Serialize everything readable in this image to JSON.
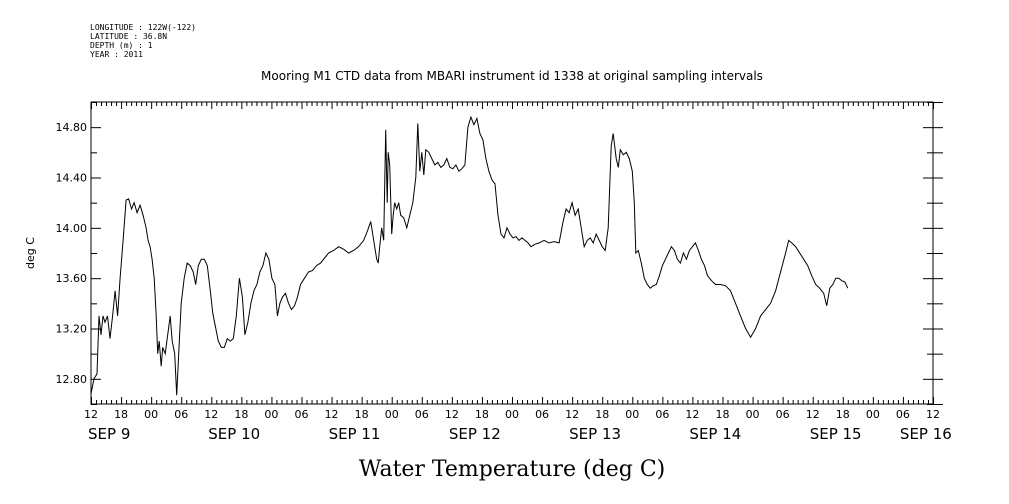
{
  "meta": {
    "lines": [
      "LONGITUDE : 122W(-122)",
      "LATITUDE : 36.8N",
      "DEPTH (m) : 1",
      "YEAR : 2011"
    ]
  },
  "chart_data": {
    "type": "line",
    "title": "Mooring M1 CTD data from MBARI instrument id 1338 at original sampling intervals",
    "xlabel": "Water Temperature (deg C)",
    "ylabel": "deg C",
    "x_unit": "hours from SEP 9 12:00",
    "xlim": [
      0,
      168
    ],
    "ylim": [
      12.6,
      15.0
    ],
    "yticks": [
      "12.80",
      "13.20",
      "13.60",
      "14.00",
      "14.40",
      "14.80"
    ],
    "ytick_values": [
      12.8,
      13.2,
      13.6,
      14.0,
      14.4,
      14.8
    ],
    "xtick_labels": [
      "12",
      "18",
      "00",
      "06",
      "12",
      "18",
      "00",
      "06",
      "12",
      "18",
      "00",
      "06",
      "12",
      "18",
      "00",
      "06",
      "12",
      "18",
      "00",
      "06",
      "12",
      "18",
      "00",
      "06",
      "12",
      "18",
      "00",
      "06",
      "12"
    ],
    "day_labels": [
      {
        "label": "SEP  9",
        "x": 0
      },
      {
        "label": "SEP 10",
        "x": 24
      },
      {
        "label": "SEP 11",
        "x": 48
      },
      {
        "label": "SEP 12",
        "x": 72
      },
      {
        "label": "SEP 13",
        "x": 96
      },
      {
        "label": "SEP 14",
        "x": 120
      },
      {
        "label": "SEP 15",
        "x": 144
      },
      {
        "label": "SEP 16",
        "x": 162
      }
    ],
    "grid": false,
    "series": [
      {
        "values": [
          [
            0,
            12.68
          ],
          [
            0.6,
            12.8
          ],
          [
            1.2,
            12.84
          ],
          [
            1.6,
            13.3
          ],
          [
            2.0,
            13.15
          ],
          [
            2.4,
            13.3
          ],
          [
            2.8,
            13.25
          ],
          [
            3.3,
            13.3
          ],
          [
            3.8,
            13.12
          ],
          [
            4.3,
            13.3
          ],
          [
            4.8,
            13.5
          ],
          [
            5.3,
            13.3
          ],
          [
            5.8,
            13.6
          ],
          [
            6.4,
            13.9
          ],
          [
            7.0,
            14.22
          ],
          [
            7.5,
            14.23
          ],
          [
            8.1,
            14.15
          ],
          [
            8.6,
            14.2
          ],
          [
            9.2,
            14.12
          ],
          [
            9.8,
            14.18
          ],
          [
            10.4,
            14.1
          ],
          [
            11,
            14.0
          ],
          [
            11.4,
            13.9
          ],
          [
            11.8,
            13.85
          ],
          [
            12.2,
            13.75
          ],
          [
            12.6,
            13.6
          ],
          [
            13.0,
            13.3
          ],
          [
            13.3,
            13.0
          ],
          [
            13.6,
            13.1
          ],
          [
            14.0,
            12.9
          ],
          [
            14.3,
            13.05
          ],
          [
            14.8,
            13.0
          ],
          [
            15.3,
            13.15
          ],
          [
            15.8,
            13.3
          ],
          [
            16.2,
            13.1
          ],
          [
            16.7,
            13.0
          ],
          [
            17.1,
            12.67
          ],
          [
            17.5,
            13.0
          ],
          [
            18,
            13.4
          ],
          [
            18.6,
            13.6
          ],
          [
            19.2,
            13.72
          ],
          [
            19.8,
            13.7
          ],
          [
            20.4,
            13.65
          ],
          [
            20.9,
            13.55
          ],
          [
            21.4,
            13.7
          ],
          [
            22.0,
            13.75
          ],
          [
            22.6,
            13.75
          ],
          [
            23.2,
            13.7
          ],
          [
            23.8,
            13.5
          ],
          [
            24.3,
            13.32
          ],
          [
            24.9,
            13.2
          ],
          [
            25.4,
            13.1
          ],
          [
            26,
            13.05
          ],
          [
            26.6,
            13.05
          ],
          [
            27.2,
            13.12
          ],
          [
            27.8,
            13.1
          ],
          [
            28.4,
            13.12
          ],
          [
            29,
            13.3
          ],
          [
            29.6,
            13.6
          ],
          [
            30.2,
            13.45
          ],
          [
            30.7,
            13.15
          ],
          [
            31.3,
            13.25
          ],
          [
            31.9,
            13.4
          ],
          [
            32.5,
            13.5
          ],
          [
            33.1,
            13.55
          ],
          [
            33.7,
            13.65
          ],
          [
            34.3,
            13.7
          ],
          [
            34.9,
            13.8
          ],
          [
            35.5,
            13.75
          ],
          [
            36.1,
            13.6
          ],
          [
            36.7,
            13.55
          ],
          [
            37.2,
            13.3
          ],
          [
            37.7,
            13.4
          ],
          [
            38.2,
            13.45
          ],
          [
            38.8,
            13.48
          ],
          [
            39.4,
            13.4
          ],
          [
            40,
            13.35
          ],
          [
            40.6,
            13.38
          ],
          [
            41.2,
            13.45
          ],
          [
            41.8,
            13.55
          ],
          [
            42.6,
            13.6
          ],
          [
            43.4,
            13.65
          ],
          [
            44.2,
            13.66
          ],
          [
            45,
            13.7
          ],
          [
            45.8,
            13.72
          ],
          [
            46.6,
            13.76
          ],
          [
            47.4,
            13.8
          ],
          [
            48.4,
            13.82
          ],
          [
            49.4,
            13.85
          ],
          [
            50.4,
            13.83
          ],
          [
            51.4,
            13.8
          ],
          [
            52.4,
            13.82
          ],
          [
            53.4,
            13.85
          ],
          [
            54.4,
            13.9
          ],
          [
            55.2,
            13.98
          ],
          [
            55.8,
            14.05
          ],
          [
            56.2,
            13.95
          ],
          [
            56.6,
            13.85
          ],
          [
            57.0,
            13.75
          ],
          [
            57.3,
            13.72
          ],
          [
            57.6,
            13.85
          ],
          [
            58.0,
            14.0
          ],
          [
            58.4,
            13.9
          ],
          [
            58.8,
            14.78
          ],
          [
            59.1,
            14.2
          ],
          [
            59.3,
            14.6
          ],
          [
            59.6,
            14.5
          ],
          [
            60,
            13.95
          ],
          [
            60.3,
            14.1
          ],
          [
            60.6,
            14.2
          ],
          [
            61,
            14.15
          ],
          [
            61.4,
            14.2
          ],
          [
            61.8,
            14.1
          ],
          [
            62.4,
            14.08
          ],
          [
            63,
            14.0
          ],
          [
            63.6,
            14.1
          ],
          [
            64.2,
            14.2
          ],
          [
            64.8,
            14.4
          ],
          [
            65.2,
            14.83
          ],
          [
            65.6,
            14.45
          ],
          [
            66,
            14.6
          ],
          [
            66.4,
            14.42
          ],
          [
            66.8,
            14.62
          ],
          [
            67.4,
            14.6
          ],
          [
            68,
            14.55
          ],
          [
            68.6,
            14.5
          ],
          [
            69.2,
            14.52
          ],
          [
            69.8,
            14.48
          ],
          [
            70.4,
            14.5
          ],
          [
            71,
            14.55
          ],
          [
            71.6,
            14.48
          ],
          [
            72.2,
            14.47
          ],
          [
            72.8,
            14.5
          ],
          [
            73.4,
            14.45
          ],
          [
            74.0,
            14.47
          ],
          [
            74.6,
            14.5
          ],
          [
            75.2,
            14.8
          ],
          [
            75.8,
            14.88
          ],
          [
            76.4,
            14.82
          ],
          [
            77,
            14.87
          ],
          [
            77.6,
            14.75
          ],
          [
            78.2,
            14.7
          ],
          [
            78.8,
            14.55
          ],
          [
            79.4,
            14.45
          ],
          [
            80,
            14.38
          ],
          [
            80.6,
            14.35
          ],
          [
            81.2,
            14.1
          ],
          [
            81.8,
            13.95
          ],
          [
            82.4,
            13.92
          ],
          [
            83,
            14.0
          ],
          [
            83.6,
            13.95
          ],
          [
            84.2,
            13.92
          ],
          [
            84.8,
            13.93
          ],
          [
            85.4,
            13.9
          ],
          [
            86,
            13.92
          ],
          [
            86.6,
            13.9
          ],
          [
            87.2,
            13.88
          ],
          [
            87.8,
            13.85
          ],
          [
            88.6,
            13.87
          ],
          [
            89.4,
            13.88
          ],
          [
            90.4,
            13.9
          ],
          [
            91.4,
            13.88
          ],
          [
            92.4,
            13.89
          ],
          [
            93.4,
            13.88
          ],
          [
            94.2,
            14.05
          ],
          [
            94.8,
            14.15
          ],
          [
            95.4,
            14.12
          ],
          [
            96,
            14.2
          ],
          [
            96.6,
            14.1
          ],
          [
            97.2,
            14.15
          ],
          [
            97.8,
            14.0
          ],
          [
            98.4,
            13.85
          ],
          [
            99,
            13.9
          ],
          [
            99.6,
            13.92
          ],
          [
            100.2,
            13.88
          ],
          [
            100.8,
            13.95
          ],
          [
            101.4,
            13.9
          ],
          [
            102,
            13.85
          ],
          [
            102.6,
            13.82
          ],
          [
            103.2,
            14.0
          ],
          [
            103.8,
            14.65
          ],
          [
            104.2,
            14.75
          ],
          [
            104.8,
            14.55
          ],
          [
            105.2,
            14.48
          ],
          [
            105.6,
            14.62
          ],
          [
            106.2,
            14.58
          ],
          [
            106.8,
            14.6
          ],
          [
            107.4,
            14.55
          ],
          [
            108,
            14.45
          ],
          [
            108.4,
            14.2
          ],
          [
            108.7,
            13.8
          ],
          [
            109.2,
            13.82
          ],
          [
            109.8,
            13.72
          ],
          [
            110.4,
            13.6
          ],
          [
            111,
            13.55
          ],
          [
            111.6,
            13.52
          ],
          [
            112.2,
            13.54
          ],
          [
            112.8,
            13.55
          ],
          [
            113.4,
            13.62
          ],
          [
            114,
            13.7
          ],
          [
            114.6,
            13.75
          ],
          [
            115.2,
            13.8
          ],
          [
            115.8,
            13.85
          ],
          [
            116.4,
            13.82
          ],
          [
            117,
            13.75
          ],
          [
            117.6,
            13.72
          ],
          [
            118.2,
            13.8
          ],
          [
            118.8,
            13.75
          ],
          [
            119.4,
            13.82
          ],
          [
            120,
            13.85
          ],
          [
            120.6,
            13.88
          ],
          [
            121.2,
            13.82
          ],
          [
            121.8,
            13.75
          ],
          [
            122.4,
            13.7
          ],
          [
            123,
            13.62
          ],
          [
            123.8,
            13.58
          ],
          [
            124.6,
            13.55
          ],
          [
            125.6,
            13.55
          ],
          [
            126.6,
            13.54
          ],
          [
            127.6,
            13.5
          ],
          [
            128.6,
            13.4
          ],
          [
            129.6,
            13.3
          ],
          [
            130.6,
            13.2
          ],
          [
            131.6,
            13.13
          ],
          [
            132.6,
            13.2
          ],
          [
            133.6,
            13.3
          ],
          [
            134.6,
            13.35
          ],
          [
            135.6,
            13.4
          ],
          [
            136.6,
            13.5
          ],
          [
            137.6,
            13.65
          ],
          [
            138.6,
            13.8
          ],
          [
            139.2,
            13.9
          ],
          [
            139.8,
            13.88
          ],
          [
            140.6,
            13.85
          ],
          [
            141.4,
            13.8
          ],
          [
            142.2,
            13.75
          ],
          [
            143,
            13.7
          ],
          [
            143.8,
            13.62
          ],
          [
            144.6,
            13.55
          ],
          [
            145.4,
            13.52
          ],
          [
            146.2,
            13.48
          ],
          [
            146.8,
            13.38
          ],
          [
            147.4,
            13.52
          ],
          [
            148,
            13.55
          ],
          [
            148.6,
            13.6
          ],
          [
            149.2,
            13.6
          ],
          [
            149.8,
            13.58
          ],
          [
            150.4,
            13.57
          ],
          [
            151,
            13.52
          ]
        ]
      }
    ]
  }
}
